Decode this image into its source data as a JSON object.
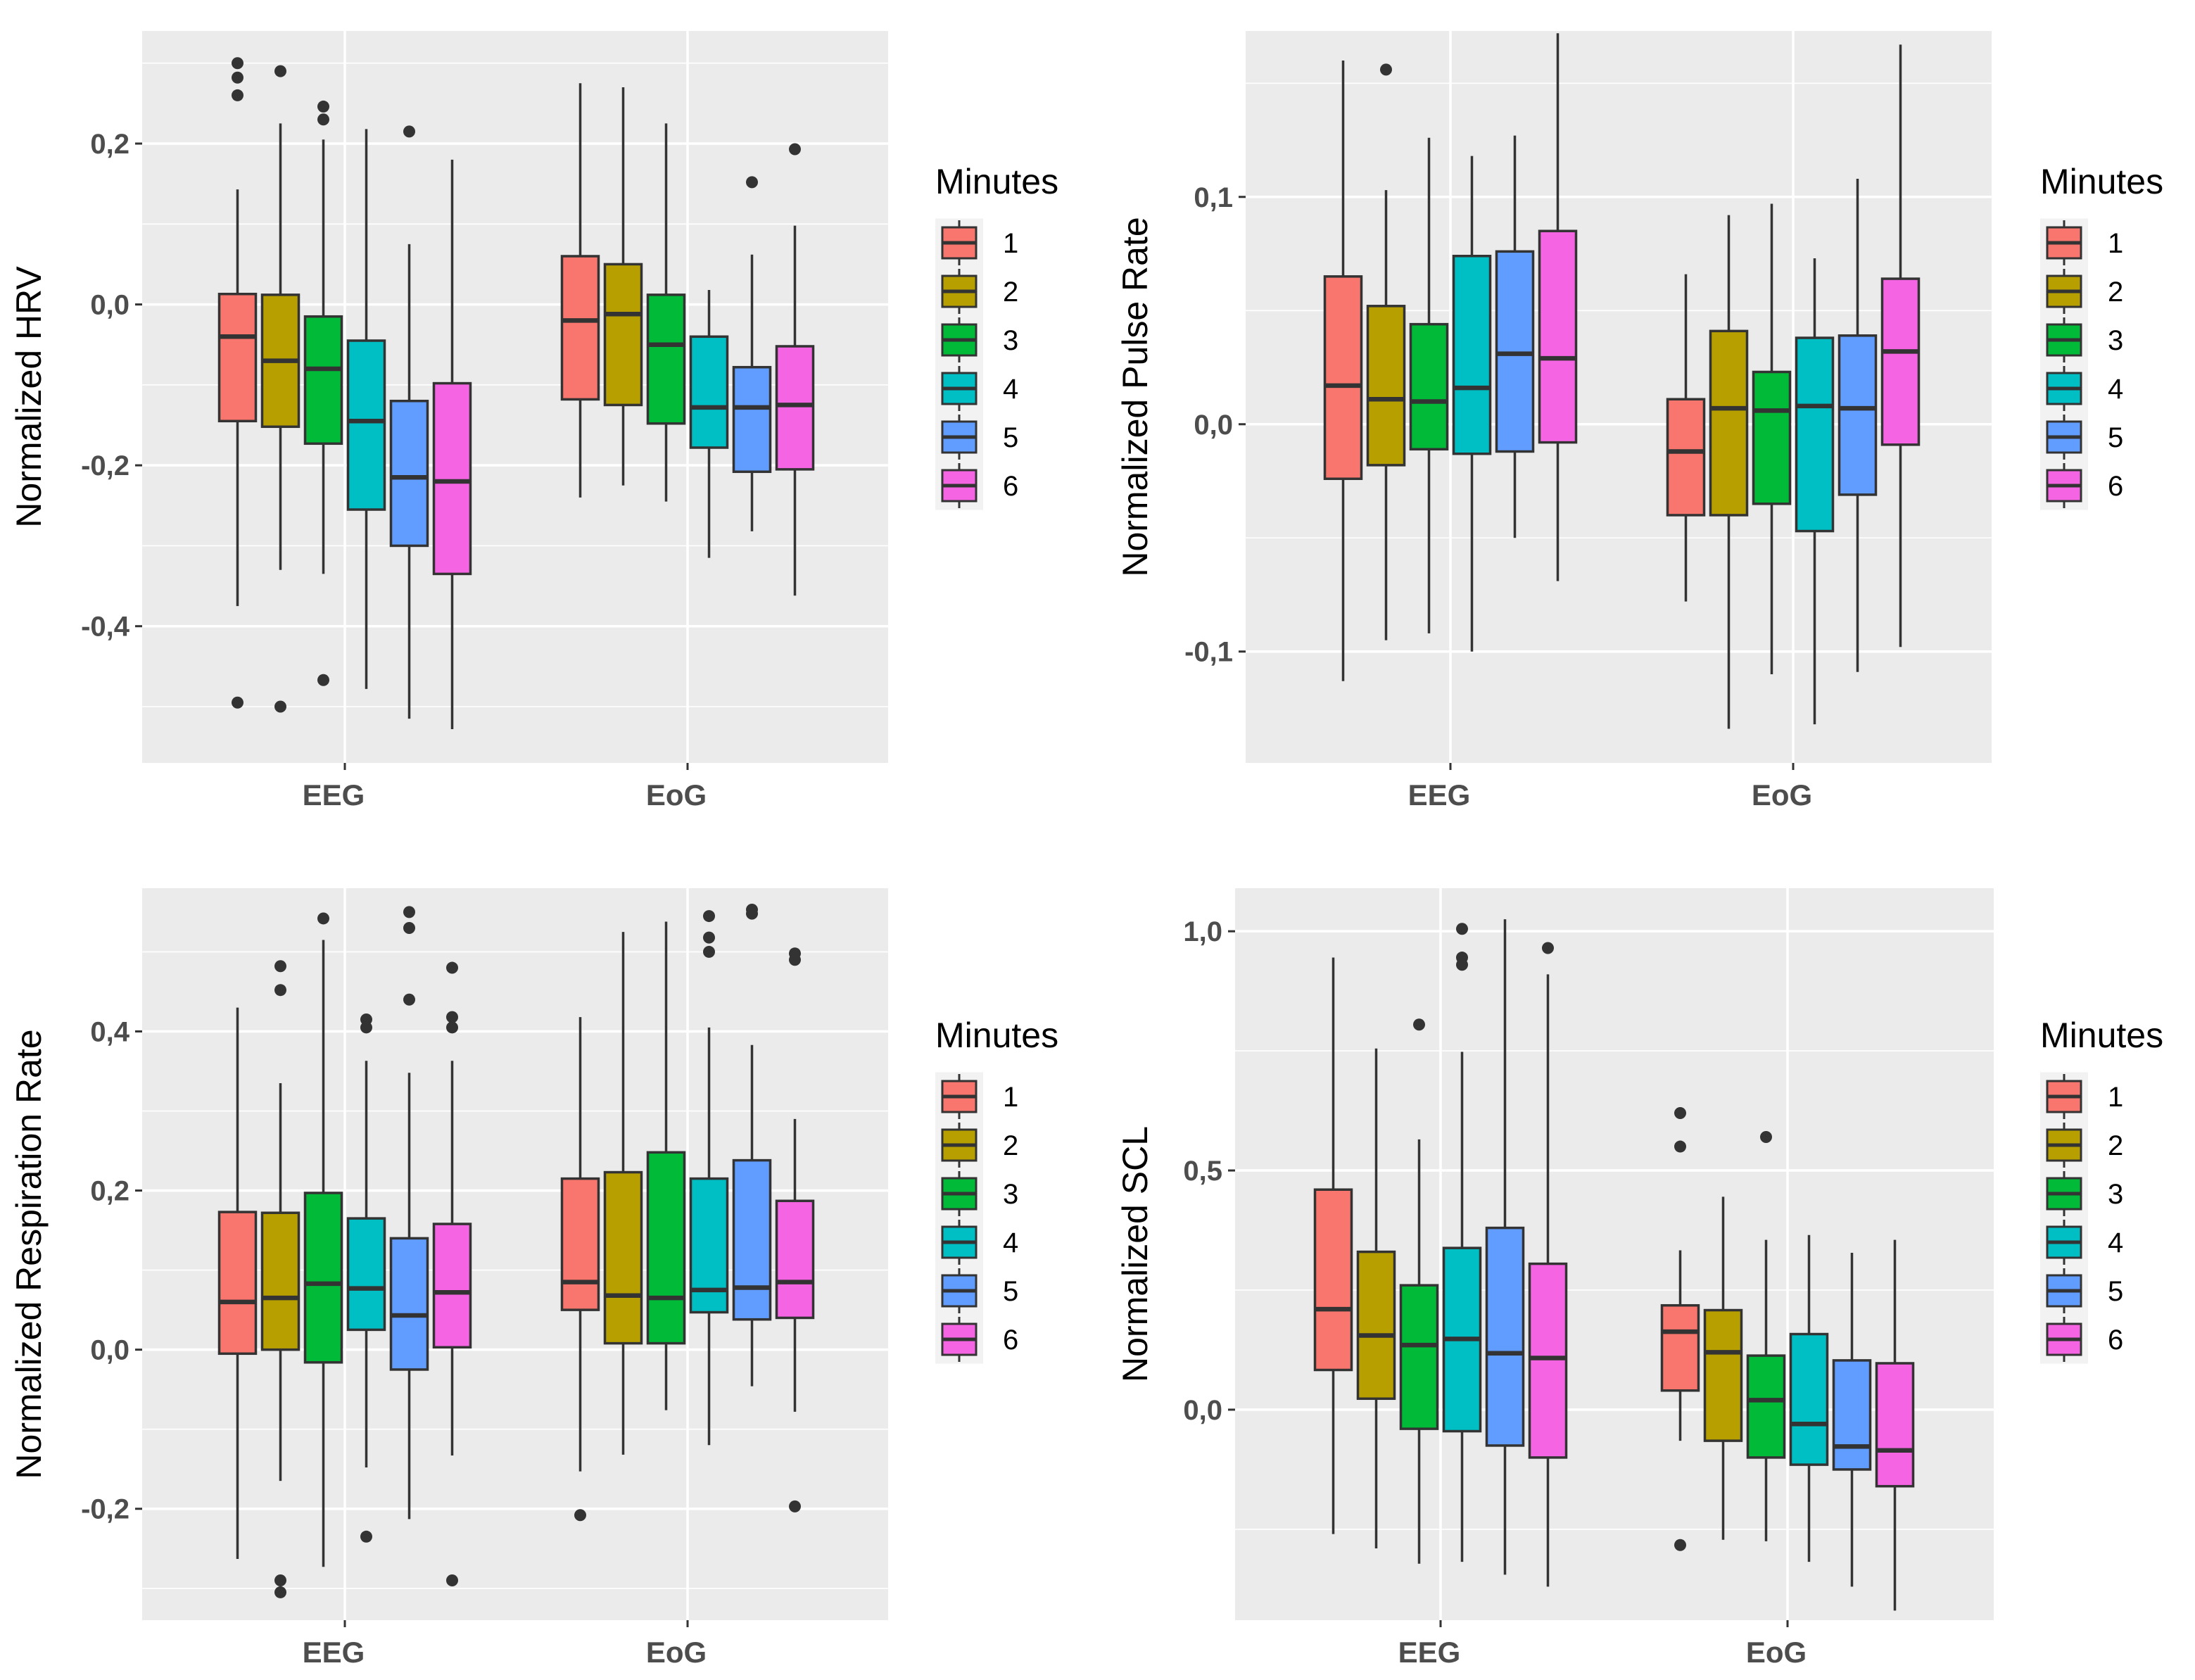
{
  "figure": {
    "legend_title": "Minutes",
    "legend_labels": [
      "1",
      "2",
      "3",
      "4",
      "5",
      "6"
    ],
    "categories": [
      "EEG",
      "EoG"
    ],
    "colors": [
      "#F8766D",
      "#B79F00",
      "#00BA38",
      "#00BFC4",
      "#619CFF",
      "#F564E3"
    ],
    "panel_bg": "#EBEBEB",
    "grid_color": "#FFFFFF",
    "box_line_color": "#333333"
  },
  "chart_data": [
    {
      "type": "box",
      "title": "",
      "ylabel": "Normalized HRV",
      "xlabel": "",
      "ylim": [
        -0.57,
        0.34
      ],
      "yticks": [
        0.2,
        0.0,
        -0.2,
        -0.4
      ],
      "ytick_labels": [
        "0,2",
        "0,0",
        "-0,2",
        "-0,4"
      ],
      "categories": [
        "EEG",
        "EoG"
      ],
      "series": [
        {
          "name": "1",
          "boxes": [
            {
              "low": -0.375,
              "q1": -0.145,
              "median": -0.04,
              "q3": 0.013,
              "high": 0.143,
              "outliers": [
                0.3,
                0.282,
                0.26,
                -0.495
              ]
            },
            {
              "low": -0.24,
              "q1": -0.118,
              "median": -0.02,
              "q3": 0.06,
              "high": 0.275,
              "outliers": []
            }
          ]
        },
        {
          "name": "2",
          "boxes": [
            {
              "low": -0.33,
              "q1": -0.152,
              "median": -0.07,
              "q3": 0.012,
              "high": 0.225,
              "outliers": [
                0.29,
                -0.5
              ]
            },
            {
              "low": -0.225,
              "q1": -0.125,
              "median": -0.012,
              "q3": 0.05,
              "high": 0.27,
              "outliers": []
            }
          ]
        },
        {
          "name": "3",
          "boxes": [
            {
              "low": -0.335,
              "q1": -0.173,
              "median": -0.08,
              "q3": -0.015,
              "high": 0.205,
              "outliers": [
                0.246,
                0.23,
                -0.467
              ]
            },
            {
              "low": -0.245,
              "q1": -0.148,
              "median": -0.05,
              "q3": 0.012,
              "high": 0.225,
              "outliers": []
            }
          ]
        },
        {
          "name": "4",
          "boxes": [
            {
              "low": -0.478,
              "q1": -0.255,
              "median": -0.145,
              "q3": -0.045,
              "high": 0.218,
              "outliers": []
            },
            {
              "low": -0.315,
              "q1": -0.178,
              "median": -0.128,
              "q3": -0.04,
              "high": 0.018,
              "outliers": []
            }
          ]
        },
        {
          "name": "5",
          "boxes": [
            {
              "low": -0.515,
              "q1": -0.3,
              "median": -0.215,
              "q3": -0.12,
              "high": 0.075,
              "outliers": [
                0.215
              ]
            },
            {
              "low": -0.282,
              "q1": -0.208,
              "median": -0.128,
              "q3": -0.078,
              "high": 0.062,
              "outliers": [
                0.152
              ]
            }
          ]
        },
        {
          "name": "6",
          "boxes": [
            {
              "low": -0.528,
              "q1": -0.335,
              "median": -0.22,
              "q3": -0.098,
              "high": 0.18,
              "outliers": []
            },
            {
              "low": -0.362,
              "q1": -0.205,
              "median": -0.125,
              "q3": -0.052,
              "high": 0.098,
              "outliers": [
                0.193
              ]
            }
          ]
        }
      ]
    },
    {
      "type": "box",
      "title": "",
      "ylabel": "Normalized Pulse Rate",
      "xlabel": "",
      "ylim": [
        -0.149,
        0.173
      ],
      "yticks": [
        0.1,
        0.0,
        -0.1
      ],
      "ytick_labels": [
        "0,1",
        "0,0",
        "-0,1"
      ],
      "categories": [
        "EEG",
        "EoG"
      ],
      "series": [
        {
          "name": "1",
          "boxes": [
            {
              "low": -0.113,
              "q1": -0.024,
              "median": 0.017,
              "q3": 0.065,
              "high": 0.16,
              "outliers": []
            },
            {
              "low": -0.078,
              "q1": -0.04,
              "median": -0.012,
              "q3": 0.011,
              "high": 0.066,
              "outliers": []
            }
          ]
        },
        {
          "name": "2",
          "boxes": [
            {
              "low": -0.095,
              "q1": -0.018,
              "median": 0.011,
              "q3": 0.052,
              "high": 0.103,
              "outliers": [
                0.156
              ]
            },
            {
              "low": -0.134,
              "q1": -0.04,
              "median": 0.007,
              "q3": 0.041,
              "high": 0.092,
              "outliers": []
            }
          ]
        },
        {
          "name": "3",
          "boxes": [
            {
              "low": -0.092,
              "q1": -0.011,
              "median": 0.01,
              "q3": 0.044,
              "high": 0.126,
              "outliers": []
            },
            {
              "low": -0.11,
              "q1": -0.035,
              "median": 0.006,
              "q3": 0.023,
              "high": 0.097,
              "outliers": []
            }
          ]
        },
        {
          "name": "4",
          "boxes": [
            {
              "low": -0.1,
              "q1": -0.013,
              "median": 0.016,
              "q3": 0.074,
              "high": 0.118,
              "outliers": []
            },
            {
              "low": -0.132,
              "q1": -0.047,
              "median": 0.008,
              "q3": 0.038,
              "high": 0.073,
              "outliers": []
            }
          ]
        },
        {
          "name": "5",
          "boxes": [
            {
              "low": -0.05,
              "q1": -0.012,
              "median": 0.031,
              "q3": 0.076,
              "high": 0.127,
              "outliers": []
            },
            {
              "low": -0.109,
              "q1": -0.031,
              "median": 0.007,
              "q3": 0.039,
              "high": 0.108,
              "outliers": []
            }
          ]
        },
        {
          "name": "6",
          "boxes": [
            {
              "low": -0.069,
              "q1": -0.008,
              "median": 0.029,
              "q3": 0.085,
              "high": 0.172,
              "outliers": []
            },
            {
              "low": -0.098,
              "q1": -0.009,
              "median": 0.032,
              "q3": 0.064,
              "high": 0.167,
              "outliers": []
            }
          ]
        }
      ]
    },
    {
      "type": "box",
      "title": "",
      "ylabel": "Normalized Respiration Rate",
      "xlabel": "",
      "ylim": [
        -0.34,
        0.58
      ],
      "yticks": [
        0.4,
        0.2,
        0.0,
        -0.2
      ],
      "ytick_labels": [
        "0,4",
        "0,2",
        "0,0",
        "-0,2"
      ],
      "categories": [
        "EEG",
        "EoG"
      ],
      "series": [
        {
          "name": "1",
          "boxes": [
            {
              "low": -0.263,
              "q1": -0.005,
              "median": 0.06,
              "q3": 0.173,
              "high": 0.43,
              "outliers": []
            },
            {
              "low": -0.153,
              "q1": 0.05,
              "median": 0.085,
              "q3": 0.215,
              "high": 0.418,
              "outliers": [
                -0.208
              ]
            }
          ]
        },
        {
          "name": "2",
          "boxes": [
            {
              "low": -0.165,
              "q1": 0.0,
              "median": 0.065,
              "q3": 0.172,
              "high": 0.335,
              "outliers": [
                0.482,
                0.452,
                -0.29,
                -0.305
              ]
            },
            {
              "low": -0.132,
              "q1": 0.008,
              "median": 0.068,
              "q3": 0.223,
              "high": 0.525,
              "outliers": []
            }
          ]
        },
        {
          "name": "3",
          "boxes": [
            {
              "low": -0.273,
              "q1": -0.016,
              "median": 0.083,
              "q3": 0.197,
              "high": 0.515,
              "outliers": [
                0.542
              ]
            },
            {
              "low": -0.076,
              "q1": 0.008,
              "median": 0.065,
              "q3": 0.248,
              "high": 0.538,
              "outliers": []
            }
          ]
        },
        {
          "name": "4",
          "boxes": [
            {
              "low": -0.148,
              "q1": 0.025,
              "median": 0.077,
              "q3": 0.165,
              "high": 0.363,
              "outliers": [
                0.415,
                0.405,
                -0.235
              ]
            },
            {
              "low": -0.12,
              "q1": 0.047,
              "median": 0.075,
              "q3": 0.215,
              "high": 0.405,
              "outliers": [
                0.545,
                0.518,
                0.5
              ]
            }
          ]
        },
        {
          "name": "5",
          "boxes": [
            {
              "low": -0.213,
              "q1": -0.025,
              "median": 0.043,
              "q3": 0.14,
              "high": 0.348,
              "outliers": [
                0.55,
                0.53,
                0.44
              ]
            },
            {
              "low": -0.046,
              "q1": 0.038,
              "median": 0.078,
              "q3": 0.238,
              "high": 0.383,
              "outliers": [
                0.553,
                0.548
              ]
            }
          ]
        },
        {
          "name": "6",
          "boxes": [
            {
              "low": -0.133,
              "q1": 0.003,
              "median": 0.072,
              "q3": 0.158,
              "high": 0.363,
              "outliers": [
                0.48,
                0.418,
                0.405,
                -0.29
              ]
            },
            {
              "low": -0.078,
              "q1": 0.04,
              "median": 0.085,
              "q3": 0.187,
              "high": 0.29,
              "outliers": [
                0.498,
                0.49,
                -0.197
              ]
            }
          ]
        }
      ]
    },
    {
      "type": "box",
      "title": "",
      "ylabel": "Normalized SCL",
      "xlabel": "",
      "ylim": [
        -0.44,
        1.09
      ],
      "yticks": [
        1.0,
        0.5,
        0.0
      ],
      "ytick_labels": [
        "1,0",
        "0,5",
        "0,0"
      ],
      "categories": [
        "EEG",
        "EoG"
      ],
      "series": [
        {
          "name": "1",
          "boxes": [
            {
              "low": -0.26,
              "q1": 0.083,
              "median": 0.21,
              "q3": 0.46,
              "high": 0.945,
              "outliers": []
            },
            {
              "low": -0.065,
              "q1": 0.04,
              "median": 0.163,
              "q3": 0.218,
              "high": 0.333,
              "outliers": [
                0.62,
                0.55,
                -0.283
              ]
            }
          ]
        },
        {
          "name": "2",
          "boxes": [
            {
              "low": -0.29,
              "q1": 0.023,
              "median": 0.155,
              "q3": 0.33,
              "high": 0.755,
              "outliers": []
            },
            {
              "low": -0.272,
              "q1": -0.065,
              "median": 0.12,
              "q3": 0.208,
              "high": 0.445,
              "outliers": []
            }
          ]
        },
        {
          "name": "3",
          "boxes": [
            {
              "low": -0.322,
              "q1": -0.04,
              "median": 0.135,
              "q3": 0.26,
              "high": 0.565,
              "outliers": [
                0.805
              ]
            },
            {
              "low": -0.275,
              "q1": -0.1,
              "median": 0.02,
              "q3": 0.113,
              "high": 0.355,
              "outliers": [
                0.57
              ]
            }
          ]
        },
        {
          "name": "4",
          "boxes": [
            {
              "low": -0.318,
              "q1": -0.045,
              "median": 0.148,
              "q3": 0.338,
              "high": 0.748,
              "outliers": [
                1.005,
                0.945,
                0.93
              ]
            },
            {
              "low": -0.318,
              "q1": -0.115,
              "median": -0.03,
              "q3": 0.158,
              "high": 0.365,
              "outliers": []
            }
          ]
        },
        {
          "name": "5",
          "boxes": [
            {
              "low": -0.345,
              "q1": -0.075,
              "median": 0.118,
              "q3": 0.38,
              "high": 1.025,
              "outliers": []
            },
            {
              "low": -0.37,
              "q1": -0.125,
              "median": -0.077,
              "q3": 0.103,
              "high": 0.328,
              "outliers": []
            }
          ]
        },
        {
          "name": "6",
          "boxes": [
            {
              "low": -0.37,
              "q1": -0.1,
              "median": 0.108,
              "q3": 0.305,
              "high": 0.91,
              "outliers": [
                0.965
              ]
            },
            {
              "low": -0.42,
              "q1": -0.16,
              "median": -0.085,
              "q3": 0.097,
              "high": 0.355,
              "outliers": []
            }
          ]
        }
      ]
    }
  ]
}
